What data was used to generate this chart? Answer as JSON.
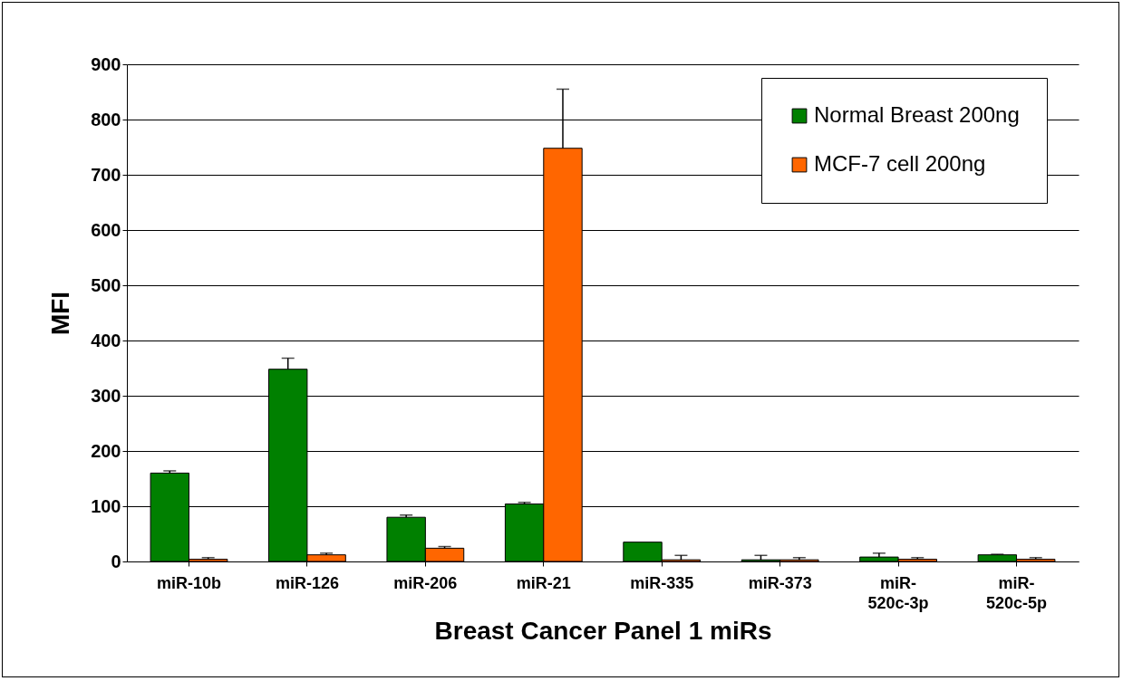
{
  "chart_data": {
    "type": "bar",
    "xlabel": "Breast Cancer Panel 1 miRs",
    "ylabel": "MFI",
    "categories": [
      "miR-10b",
      "miR-126",
      "miR-206",
      "miR-21",
      "miR-335",
      "miR-373",
      "miR-520c-3p",
      "miR-520c-5p"
    ],
    "series": [
      {
        "name": "Normal Breast 200ng",
        "color": "#008000",
        "values": [
          160,
          348,
          80,
          104,
          35,
          3,
          8,
          12
        ],
        "errors": [
          [
            160,
            164
          ],
          [
            348,
            368
          ],
          [
            80,
            84
          ],
          [
            104,
            107
          ],
          null,
          [
            3,
            11
          ],
          [
            8,
            15
          ],
          [
            12,
            13
          ]
        ]
      },
      {
        "name": "MCF-7 cell 200ng",
        "color": "#ff6600",
        "values": [
          4,
          12,
          24,
          748,
          3,
          3,
          4,
          4
        ],
        "errors": [
          [
            4,
            7
          ],
          [
            12,
            15
          ],
          [
            24,
            27
          ],
          [
            748,
            855
          ],
          [
            3,
            11
          ],
          [
            3,
            7
          ],
          [
            4,
            7
          ],
          [
            4,
            7
          ]
        ]
      }
    ],
    "ylim": [
      0,
      900
    ],
    "yticks": [
      0,
      100,
      200,
      300,
      400,
      500,
      600,
      700,
      800,
      900
    ],
    "grid": "y",
    "legend": "top right"
  }
}
